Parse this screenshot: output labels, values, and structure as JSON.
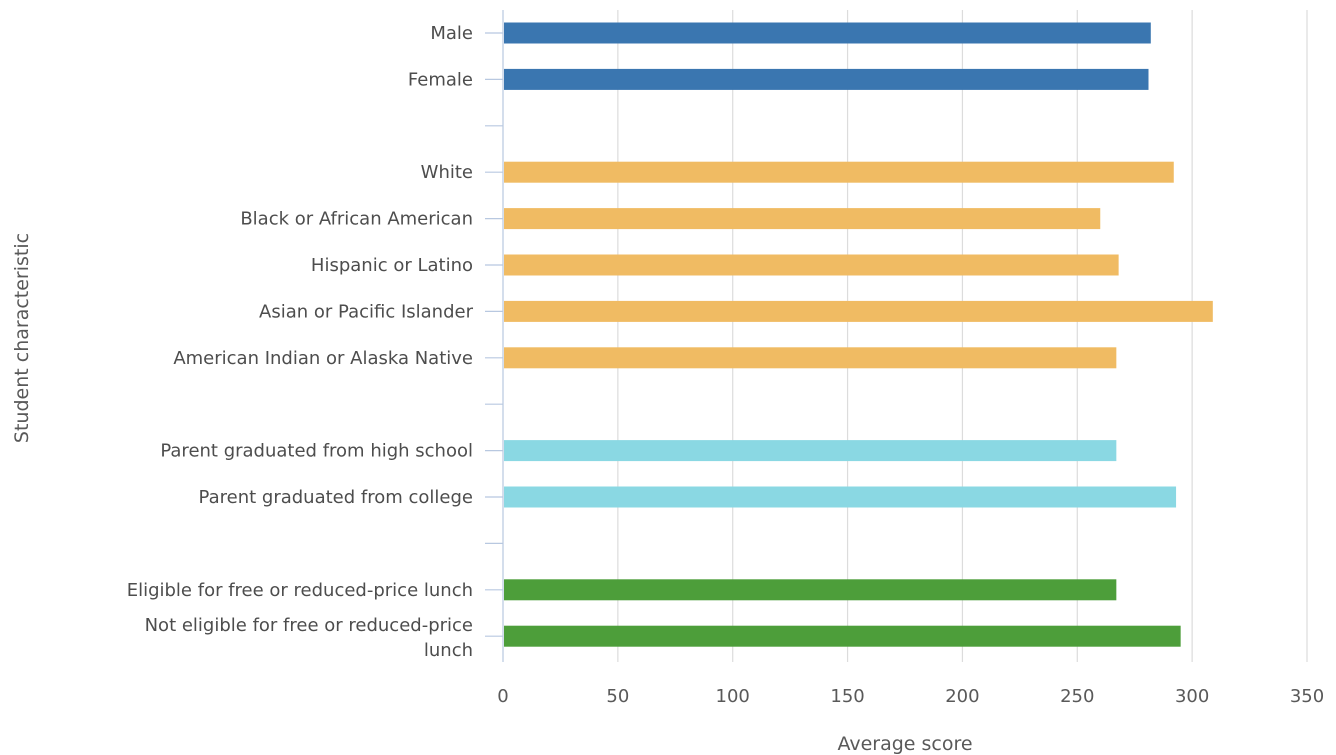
{
  "chart_data": {
    "type": "bar",
    "orientation": "horizontal",
    "title": "",
    "xlabel": "Average score",
    "ylabel": "Student characteristic",
    "xlim": [
      0,
      350
    ],
    "xticks": [
      0,
      50,
      100,
      150,
      200,
      250,
      300,
      350
    ],
    "grid": true,
    "legend": "none",
    "rows": [
      {
        "label": "Male",
        "value": 282,
        "color": "#3a76b0"
      },
      {
        "label": "Female",
        "value": 281,
        "color": "#3a76b0"
      },
      {
        "label": "",
        "value": null,
        "color": ""
      },
      {
        "label": "White",
        "value": 292,
        "color": "#f0bb63"
      },
      {
        "label": "Black or African American",
        "value": 260,
        "color": "#f0bb63"
      },
      {
        "label": "Hispanic or Latino",
        "value": 268,
        "color": "#f0bb63"
      },
      {
        "label": "Asian or Pacific Islander",
        "value": 309,
        "color": "#f0bb63"
      },
      {
        "label": "American Indian or Alaska Native",
        "value": 267,
        "color": "#f0bb63"
      },
      {
        "label": "",
        "value": null,
        "color": ""
      },
      {
        "label": "Parent graduated from high school",
        "value": 267,
        "color": "#8ad8e3"
      },
      {
        "label": "Parent graduated from college",
        "value": 293,
        "color": "#8ad8e3"
      },
      {
        "label": "",
        "value": null,
        "color": ""
      },
      {
        "label": "Eligible for free or reduced-price lunch",
        "value": 267,
        "color": "#4d9e3a"
      },
      {
        "label": "Not eligible for free or reduced-price lunch",
        "value": 295,
        "color": "#4d9e3a"
      }
    ]
  }
}
